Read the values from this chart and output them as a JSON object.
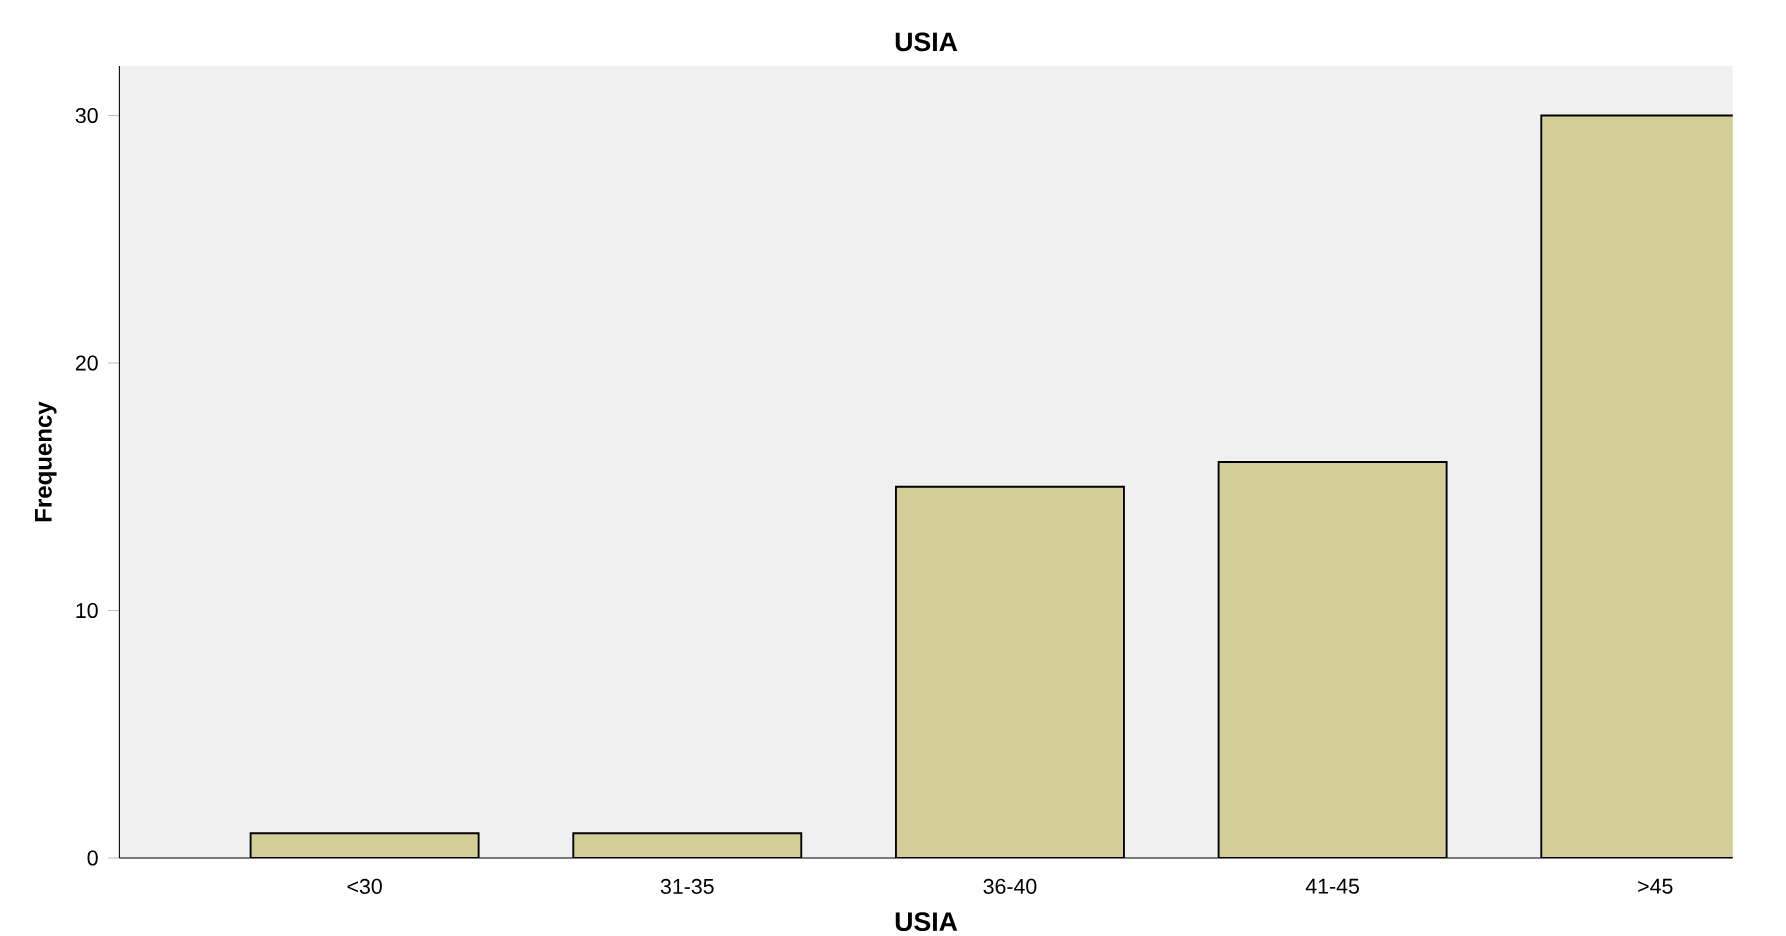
{
  "chart_data": {
    "type": "bar",
    "title": "USIA",
    "xlabel": "USIA",
    "ylabel": "Frequency",
    "categories": [
      "<30",
      "31-35",
      "36-40",
      "41-45",
      ">45"
    ],
    "values": [
      1,
      1,
      15,
      16,
      30
    ],
    "color": "#d3ce98",
    "ylim": [
      0,
      32
    ],
    "yticks": [
      0,
      10,
      20,
      30
    ],
    "grid": false
  }
}
